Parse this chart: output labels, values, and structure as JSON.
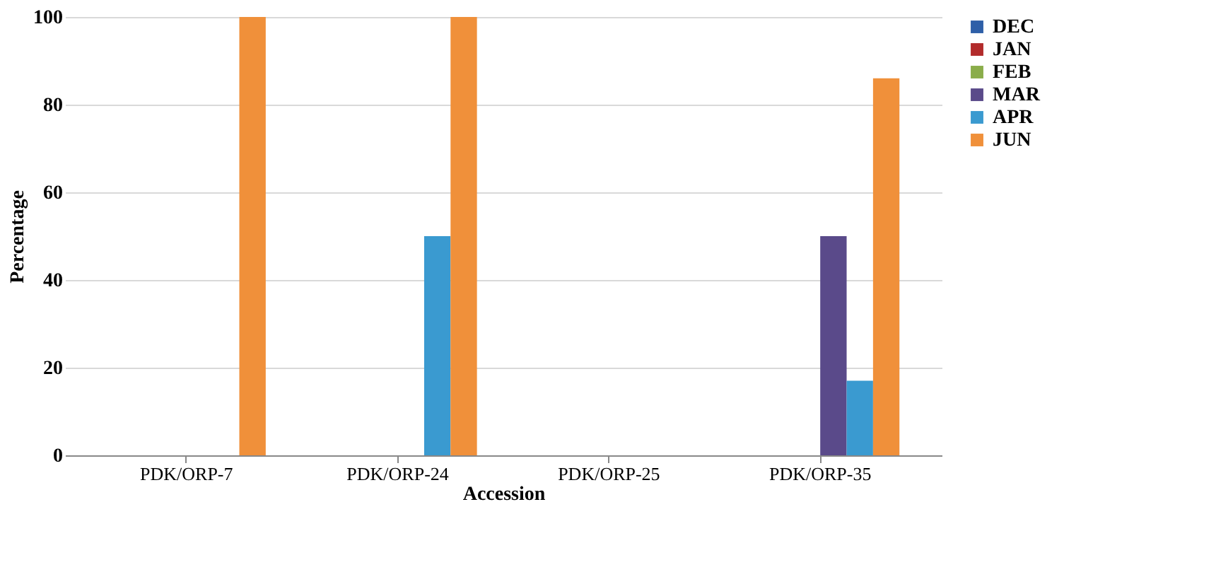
{
  "chart_data": {
    "type": "bar",
    "xlabel": "Accession",
    "ylabel": "Percentage",
    "categories": [
      "PDK/ORP-7",
      "PDK/ORP-24",
      "PDK/ORP-25",
      "PDK/ORP-35"
    ],
    "series": [
      {
        "name": "DEC",
        "color": "#2e5fa8",
        "values": [
          0,
          0,
          0,
          0
        ]
      },
      {
        "name": "JAN",
        "color": "#b22b2b",
        "values": [
          0,
          0,
          0,
          0
        ]
      },
      {
        "name": "FEB",
        "color": "#8aad4a",
        "values": [
          0,
          0,
          0,
          0
        ]
      },
      {
        "name": "MAR",
        "color": "#5a4a8a",
        "values": [
          0,
          0,
          0,
          50
        ]
      },
      {
        "name": "APR",
        "color": "#3a9ad0",
        "values": [
          0,
          50,
          0,
          17
        ]
      },
      {
        "name": "JUN",
        "color": "#f0903a",
        "values": [
          100,
          100,
          0,
          86
        ]
      }
    ],
    "ylim": [
      0,
      100
    ],
    "yticks": [
      0,
      20,
      40,
      60,
      80,
      100
    ],
    "grid": "y",
    "legend": "right"
  }
}
